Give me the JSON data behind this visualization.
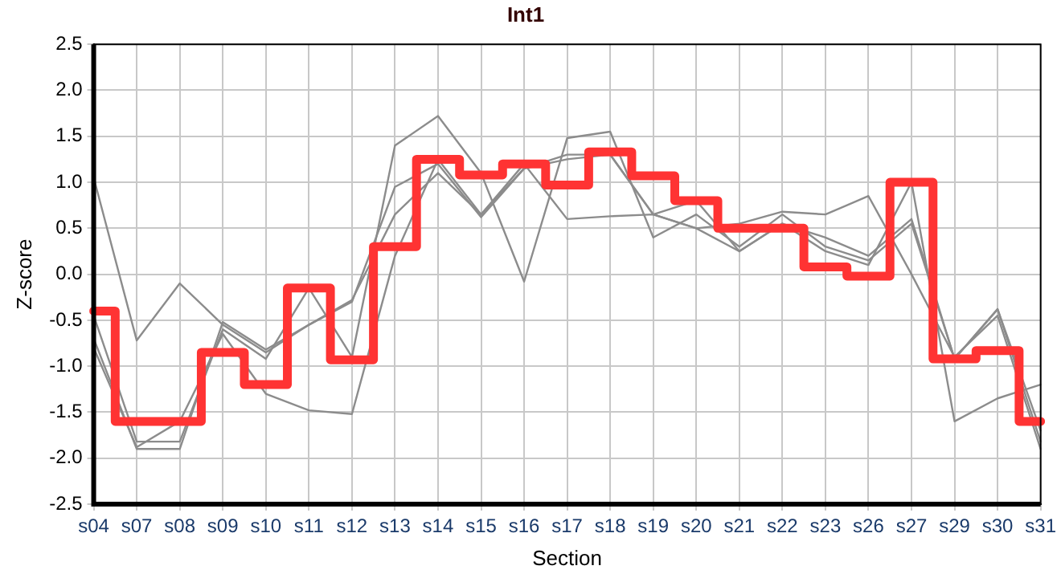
{
  "chart_data": {
    "type": "line",
    "title": "Int1",
    "xlabel": "Section",
    "ylabel": "Z-score",
    "categories": [
      "s04",
      "s07",
      "s08",
      "s09",
      "s10",
      "s11",
      "s12",
      "s13",
      "s14",
      "s15",
      "s16",
      "s17",
      "s18",
      "s19",
      "s20",
      "s21",
      "s22",
      "s23",
      "s26",
      "s27",
      "s29",
      "s30",
      "s31"
    ],
    "series": [
      {
        "type": "line",
        "color": "#8c8c8c",
        "values": [
          1.05,
          -0.72,
          -0.1,
          -0.55,
          -0.85,
          -0.55,
          -0.3,
          0.95,
          1.2,
          0.62,
          1.15,
          1.3,
          1.3,
          0.65,
          0.5,
          0.25,
          0.55,
          0.4,
          0.2,
          0.6,
          -0.92,
          -0.38,
          -1.82
        ]
      },
      {
        "type": "line",
        "color": "#8c8c8c",
        "values": [
          -0.45,
          -1.82,
          -1.82,
          -0.6,
          -0.92,
          -0.15,
          -0.9,
          1.4,
          1.72,
          1.1,
          -0.08,
          1.48,
          1.55,
          0.4,
          0.65,
          0.3,
          0.65,
          0.3,
          0.15,
          0.55,
          -0.92,
          -0.38,
          -1.7
        ]
      },
      {
        "type": "line",
        "color": "#8c8c8c",
        "values": [
          -0.7,
          -1.9,
          -1.9,
          -0.52,
          -0.82,
          -0.55,
          -0.28,
          0.65,
          1.1,
          0.65,
          1.2,
          0.6,
          0.63,
          0.65,
          0.5,
          0.55,
          0.68,
          0.65,
          0.85,
          0.0,
          -0.9,
          -0.45,
          -1.9
        ]
      },
      {
        "type": "line",
        "color": "#8c8c8c",
        "values": [
          -0.8,
          -1.88,
          -1.6,
          -0.65,
          -1.3,
          -1.48,
          -1.52,
          0.2,
          1.25,
          0.65,
          1.15,
          1.25,
          1.3,
          0.65,
          0.8,
          0.25,
          0.55,
          0.25,
          0.1,
          1.0,
          -1.6,
          -1.35,
          -1.2
        ]
      },
      {
        "type": "step",
        "color": "#ff3333",
        "values": [
          -0.4,
          -1.6,
          -1.6,
          -0.85,
          -1.2,
          -0.15,
          -0.93,
          0.3,
          1.25,
          1.08,
          1.2,
          0.97,
          1.33,
          1.07,
          0.8,
          0.5,
          0.5,
          0.08,
          -0.02,
          1.0,
          -0.92,
          -0.83,
          -1.6
        ]
      }
    ],
    "ylim": [
      -2.5,
      2.5
    ],
    "yticks": [
      -2.5,
      {
        "value": -2,
        "label": "-2.0"
      },
      -1.5,
      {
        "value": -1,
        "label": "-1.0"
      },
      -0.5,
      {
        "value": 0,
        "label": "0.0"
      },
      0.5,
      {
        "value": 1,
        "label": "1.0"
      },
      1.5,
      {
        "value": 2,
        "label": "2.0"
      },
      2.5
    ],
    "grid": true,
    "legend": false,
    "marker": "none",
    "line_style": "solid"
  }
}
